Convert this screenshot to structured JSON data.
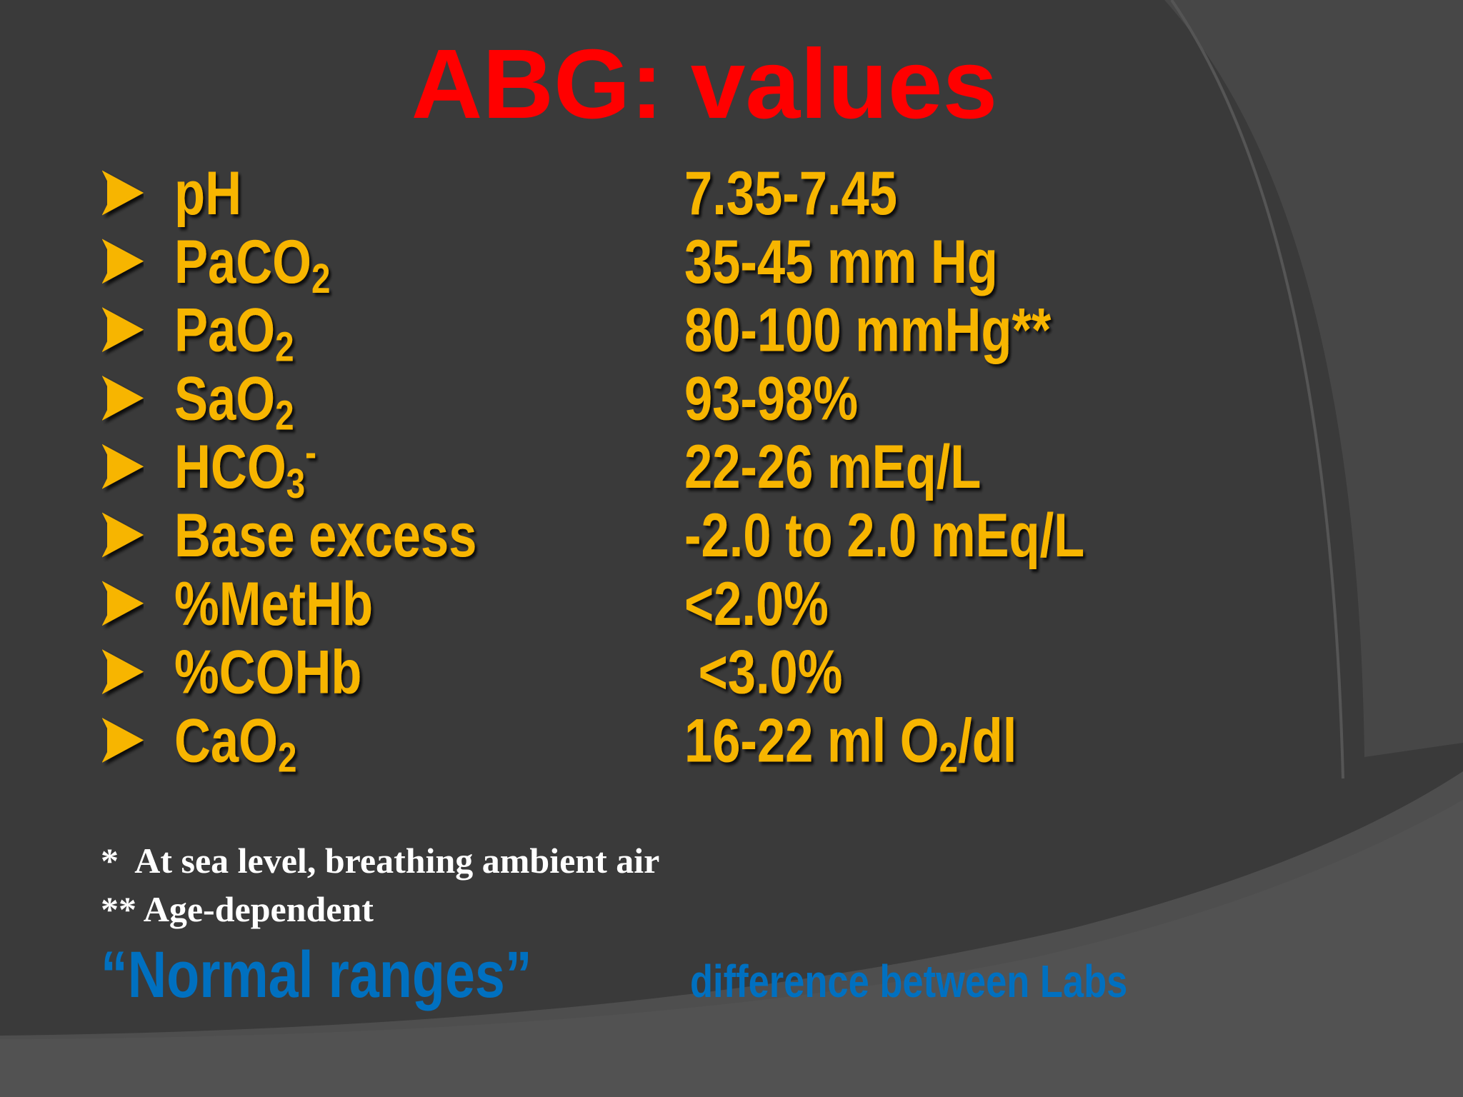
{
  "title": "ABG: values",
  "rows": [
    {
      "label": [
        {
          "text": "pH"
        }
      ],
      "value": [
        {
          "text": "7.35-7.45"
        }
      ]
    },
    {
      "label": [
        {
          "text": "PaCO"
        },
        {
          "text": "2",
          "sub": true
        }
      ],
      "value": [
        {
          "text": "35-45 mm Hg"
        }
      ]
    },
    {
      "label": [
        {
          "text": "PaO"
        },
        {
          "text": "2",
          "sub": true
        }
      ],
      "value": [
        {
          "text": "80-100 mmHg**"
        }
      ]
    },
    {
      "label": [
        {
          "text": "SaO"
        },
        {
          "text": "2",
          "sub": true
        }
      ],
      "value": [
        {
          "text": "93-98%"
        }
      ]
    },
    {
      "label": [
        {
          "text": "HCO"
        },
        {
          "text": "3",
          "sub": true
        },
        {
          "text": "-",
          "sup": true
        }
      ],
      "value": [
        {
          "text": "22-26 mEq/L"
        }
      ]
    },
    {
      "label": [
        {
          "text": "Base excess"
        }
      ],
      "value": [
        {
          "text": "-2.0 to 2.0 mEq/L"
        }
      ]
    },
    {
      "label": [
        {
          "text": "%MetHb"
        }
      ],
      "value": [
        {
          "text": "<2.0%"
        }
      ]
    },
    {
      "label": [
        {
          "text": "%COHb"
        }
      ],
      "value": [
        {
          "text": " <3.0%"
        }
      ]
    },
    {
      "label": [
        {
          "text": "CaO"
        },
        {
          "text": "2",
          "sub": true
        }
      ],
      "value": [
        {
          "text": "16-22 ml O"
        },
        {
          "text": "2",
          "sub": true
        },
        {
          "text": "/dl"
        }
      ]
    }
  ],
  "footnotes": [
    "*  At sea level, breathing ambient air",
    "** Age-dependent"
  ],
  "bottom": {
    "emphasis": "“Normal ranges”",
    "note": "difference between Labs"
  }
}
